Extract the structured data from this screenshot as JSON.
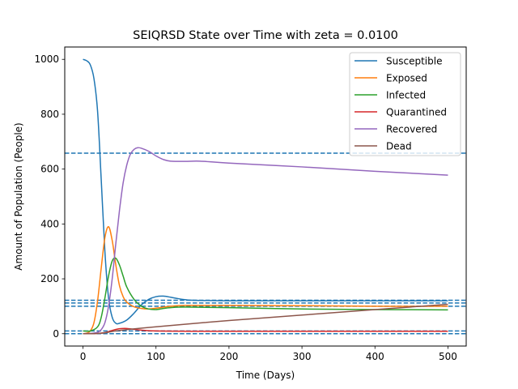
{
  "chart_data": {
    "type": "line",
    "title": "SEIQRSD State over Time with zeta = 0.0100",
    "xlabel": "Time (Days)",
    "ylabel": "Amount of Population (People)",
    "xlim": [
      -25,
      525
    ],
    "ylim": [
      -45,
      1045
    ],
    "xticks": [
      0,
      100,
      200,
      300,
      400,
      500
    ],
    "yticks": [
      0,
      200,
      400,
      600,
      800,
      1000
    ],
    "grid": false,
    "legend_position": "top-right",
    "series": [
      {
        "name": "Susceptible",
        "color": "#1f77b4",
        "x": [
          0,
          5,
          10,
          15,
          20,
          25,
          30,
          35,
          40,
          45,
          50,
          60,
          70,
          80,
          90,
          100,
          110,
          120,
          130,
          140,
          150,
          200,
          300,
          400,
          500
        ],
        "y": [
          1000,
          995,
          980,
          930,
          810,
          560,
          300,
          130,
          60,
          38,
          38,
          50,
          75,
          105,
          125,
          135,
          137,
          133,
          128,
          124,
          122,
          120,
          120,
          120,
          120
        ]
      },
      {
        "name": "Exposed",
        "color": "#ff7f0e",
        "x": [
          0,
          5,
          10,
          15,
          20,
          25,
          30,
          35,
          40,
          45,
          50,
          55,
          60,
          70,
          80,
          90,
          100,
          120,
          140,
          200,
          300,
          400,
          500
        ],
        "y": [
          0,
          2,
          10,
          40,
          120,
          240,
          350,
          390,
          340,
          250,
          175,
          135,
          115,
          98,
          92,
          90,
          93,
          100,
          103,
          103,
          102,
          100,
          100
        ]
      },
      {
        "name": "Infected",
        "color": "#2ca02c",
        "x": [
          0,
          10,
          20,
          25,
          30,
          35,
          40,
          45,
          50,
          55,
          60,
          70,
          80,
          90,
          100,
          110,
          120,
          140,
          200,
          300,
          400,
          500
        ],
        "y": [
          10,
          10,
          25,
          60,
          130,
          210,
          265,
          275,
          250,
          210,
          170,
          125,
          100,
          90,
          88,
          92,
          95,
          97,
          95,
          90,
          88,
          87
        ]
      },
      {
        "name": "Quarantined",
        "color": "#d62728",
        "x": [
          0,
          10,
          20,
          30,
          40,
          50,
          60,
          70,
          80,
          100,
          150,
          200,
          300,
          400,
          500
        ],
        "y": [
          0,
          0,
          1,
          4,
          12,
          18,
          19,
          16,
          13,
          10,
          9,
          9,
          9,
          9,
          9
        ]
      },
      {
        "name": "Recovered",
        "color": "#9467bd",
        "x": [
          0,
          10,
          20,
          25,
          30,
          35,
          40,
          45,
          50,
          55,
          60,
          65,
          70,
          75,
          80,
          90,
          100,
          110,
          120,
          140,
          160,
          200,
          300,
          400,
          500
        ],
        "y": [
          0,
          1,
          5,
          15,
          40,
          100,
          200,
          330,
          450,
          550,
          615,
          655,
          672,
          678,
          676,
          665,
          648,
          635,
          629,
          628,
          629,
          622,
          608,
          592,
          578
        ]
      },
      {
        "name": "Dead",
        "color": "#8c564b",
        "x": [
          0,
          10,
          20,
          30,
          40,
          50,
          100,
          200,
          300,
          400,
          500
        ],
        "y": [
          0,
          0,
          1,
          3,
          8,
          12,
          25,
          48,
          68,
          88,
          107
        ]
      }
    ],
    "reference_lines": [
      {
        "y": 658,
        "color": "#1f77b4",
        "style": "dashed"
      },
      {
        "y": 122,
        "color": "#1f77b4",
        "style": "dashed"
      },
      {
        "y": 112,
        "color": "#1f77b4",
        "style": "dashed"
      },
      {
        "y": 100,
        "color": "#1f77b4",
        "style": "dashed"
      },
      {
        "y": 10,
        "color": "#1f77b4",
        "style": "dashed"
      },
      {
        "y": 0,
        "color": "#1f77b4",
        "style": "dashed"
      }
    ]
  }
}
